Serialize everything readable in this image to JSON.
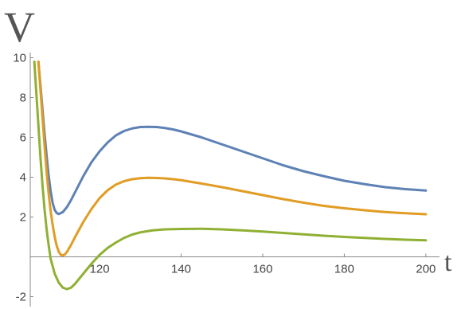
{
  "chart_data": {
    "type": "line",
    "title": "",
    "xlabel": "t",
    "ylabel": "V",
    "xlim": [
      103,
      201
    ],
    "ylim": [
      -2.3,
      10.5
    ],
    "x_ticks": [
      120,
      140,
      160,
      180,
      200
    ],
    "y_ticks": [
      -2,
      2,
      4,
      6,
      8,
      10
    ],
    "x_tick_labels": [
      "120",
      "140",
      "160",
      "180",
      "200"
    ],
    "y_tick_labels": [
      "-2",
      "2",
      "4",
      "6",
      "8",
      "10"
    ],
    "grid": false,
    "legend": "none",
    "series": [
      {
        "color": "#5E81B5",
        "points": [
          [
            105.0,
            9.8
          ],
          [
            105.5,
            8.6
          ],
          [
            106.0,
            7.4
          ],
          [
            106.5,
            6.2
          ],
          [
            107.0,
            5.1
          ],
          [
            107.5,
            4.1
          ],
          [
            108.0,
            3.3
          ],
          [
            108.5,
            2.7
          ],
          [
            109.0,
            2.35
          ],
          [
            109.5,
            2.2
          ],
          [
            110.0,
            2.15
          ],
          [
            111.0,
            2.25
          ],
          [
            112.0,
            2.5
          ],
          [
            113.0,
            2.85
          ],
          [
            114.0,
            3.25
          ],
          [
            116.0,
            4.05
          ],
          [
            118.0,
            4.75
          ],
          [
            120.0,
            5.3
          ],
          [
            122.0,
            5.75
          ],
          [
            124.0,
            6.1
          ],
          [
            126.0,
            6.32
          ],
          [
            128.0,
            6.45
          ],
          [
            130.0,
            6.52
          ],
          [
            132.0,
            6.53
          ],
          [
            134.0,
            6.52
          ],
          [
            136.0,
            6.47
          ],
          [
            138.0,
            6.4
          ],
          [
            140.0,
            6.3
          ],
          [
            145.0,
            6.0
          ],
          [
            150.0,
            5.65
          ],
          [
            155.0,
            5.3
          ],
          [
            160.0,
            4.95
          ],
          [
            165.0,
            4.6
          ],
          [
            170.0,
            4.3
          ],
          [
            175.0,
            4.05
          ],
          [
            180.0,
            3.82
          ],
          [
            185.0,
            3.65
          ],
          [
            190.0,
            3.5
          ],
          [
            195.0,
            3.4
          ],
          [
            200.0,
            3.33
          ]
        ]
      },
      {
        "color": "#E19C24",
        "points": [
          [
            105.0,
            9.8
          ],
          [
            105.5,
            8.4
          ],
          [
            106.0,
            7.0
          ],
          [
            106.5,
            5.6
          ],
          [
            107.0,
            4.3
          ],
          [
            107.5,
            3.2
          ],
          [
            108.0,
            2.3
          ],
          [
            108.5,
            1.6
          ],
          [
            109.0,
            1.0
          ],
          [
            109.5,
            0.55
          ],
          [
            110.0,
            0.25
          ],
          [
            110.5,
            0.1
          ],
          [
            111.0,
            0.08
          ],
          [
            111.5,
            0.12
          ],
          [
            112.0,
            0.25
          ],
          [
            113.0,
            0.6
          ],
          [
            114.0,
            1.0
          ],
          [
            116.0,
            1.75
          ],
          [
            118.0,
            2.4
          ],
          [
            120.0,
            2.95
          ],
          [
            122.0,
            3.35
          ],
          [
            124.0,
            3.63
          ],
          [
            126.0,
            3.8
          ],
          [
            128.0,
            3.9
          ],
          [
            130.0,
            3.95
          ],
          [
            132.0,
            3.97
          ],
          [
            134.0,
            3.96
          ],
          [
            136.0,
            3.94
          ],
          [
            138.0,
            3.9
          ],
          [
            140.0,
            3.85
          ],
          [
            145.0,
            3.68
          ],
          [
            150.0,
            3.5
          ],
          [
            155.0,
            3.3
          ],
          [
            160.0,
            3.1
          ],
          [
            165.0,
            2.9
          ],
          [
            170.0,
            2.72
          ],
          [
            175.0,
            2.56
          ],
          [
            180.0,
            2.44
          ],
          [
            185.0,
            2.34
          ],
          [
            190.0,
            2.25
          ],
          [
            195.0,
            2.19
          ],
          [
            200.0,
            2.14
          ]
        ]
      },
      {
        "color": "#8FB032",
        "points": [
          [
            104.0,
            9.8
          ],
          [
            104.5,
            8.2
          ],
          [
            105.0,
            6.6
          ],
          [
            105.5,
            5.0
          ],
          [
            106.0,
            3.6
          ],
          [
            106.5,
            2.4
          ],
          [
            107.0,
            1.4
          ],
          [
            107.5,
            0.6
          ],
          [
            108.0,
            -0.1
          ],
          [
            109.0,
            -0.85
          ],
          [
            110.0,
            -1.3
          ],
          [
            111.0,
            -1.55
          ],
          [
            112.0,
            -1.62
          ],
          [
            113.0,
            -1.55
          ],
          [
            114.0,
            -1.35
          ],
          [
            115.0,
            -1.1
          ],
          [
            116.0,
            -0.85
          ],
          [
            118.0,
            -0.35
          ],
          [
            120.0,
            0.1
          ],
          [
            122.0,
            0.45
          ],
          [
            124.0,
            0.72
          ],
          [
            126.0,
            0.95
          ],
          [
            128.0,
            1.12
          ],
          [
            130.0,
            1.23
          ],
          [
            133.0,
            1.33
          ],
          [
            136.0,
            1.38
          ],
          [
            140.0,
            1.4
          ],
          [
            145.0,
            1.41
          ],
          [
            150.0,
            1.38
          ],
          [
            155.0,
            1.33
          ],
          [
            160.0,
            1.27
          ],
          [
            165.0,
            1.2
          ],
          [
            170.0,
            1.13
          ],
          [
            175.0,
            1.06
          ],
          [
            180.0,
            1.0
          ],
          [
            185.0,
            0.95
          ],
          [
            190.0,
            0.9
          ],
          [
            195.0,
            0.86
          ],
          [
            200.0,
            0.83
          ]
        ]
      }
    ]
  }
}
